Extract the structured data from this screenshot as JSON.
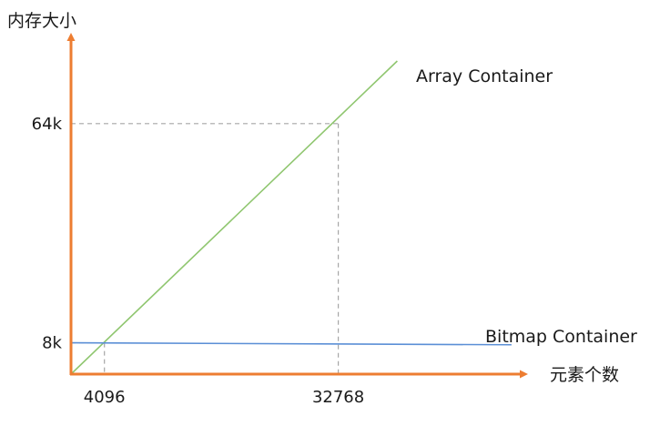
{
  "chart_data": {
    "type": "line",
    "ylabel": "内存大小",
    "xlabel": "元素个数",
    "x_ticks": [
      {
        "value": 4096,
        "label": "4096"
      },
      {
        "value": 32768,
        "label": "32768"
      }
    ],
    "y_ticks": [
      {
        "value": 8,
        "label": "8k"
      },
      {
        "value": 64,
        "label": "64k"
      }
    ],
    "xlim": [
      0,
      40000
    ],
    "ylim": [
      0,
      83
    ],
    "series": [
      {
        "name": "Array Container",
        "color": "#8fc66f",
        "x": [
          0,
          40000
        ],
        "y": [
          0,
          80
        ]
      },
      {
        "name": "Bitmap Container",
        "color": "#5b8fd6",
        "x": [
          0,
          54000
        ],
        "y": [
          8,
          7.5
        ]
      }
    ],
    "reference_points": [
      {
        "x": 4096,
        "y": 8
      },
      {
        "x": 32768,
        "y": 64
      }
    ],
    "axis_color": "#ed7d31",
    "guide_color": "#a6a6a6",
    "grid": false
  }
}
